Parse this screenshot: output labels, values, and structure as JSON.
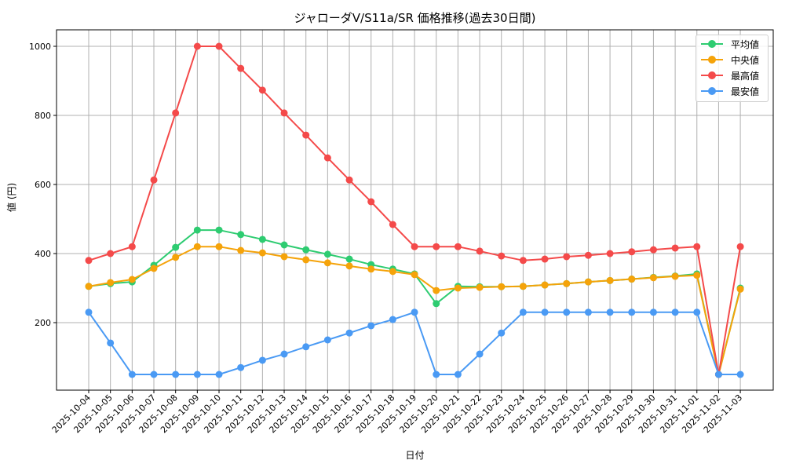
{
  "chart_data": {
    "type": "line",
    "title": "ジャローダV/S11a/SR 価格推移(過去30日間)",
    "xlabel": "日付",
    "ylabel": "値 (円)",
    "ylim": [
      0,
      1050
    ],
    "yticks": [
      200,
      400,
      600,
      800,
      1000
    ],
    "grid": true,
    "legend_position": "upper right",
    "categories": [
      "2025-10-04",
      "2025-10-05",
      "2025-10-06",
      "2025-10-07",
      "2025-10-08",
      "2025-10-09",
      "2025-10-10",
      "2025-10-11",
      "2025-10-12",
      "2025-10-13",
      "2025-10-14",
      "2025-10-15",
      "2025-10-16",
      "2025-10-17",
      "2025-10-18",
      "2025-10-19",
      "2025-10-20",
      "2025-10-21",
      "2025-10-22",
      "2025-10-23",
      "2025-10-24",
      "2025-10-25",
      "2025-10-26",
      "2025-10-27",
      "2025-10-28",
      "2025-10-29",
      "2025-10-30",
      "2025-10-31",
      "2025-11-01",
      "2025-11-02",
      "2025-11-03"
    ],
    "series": [
      {
        "name": "平均値",
        "color": "#2ecc71",
        "values": [
          305,
          313,
          318,
          366,
          418,
          468,
          468,
          455,
          441,
          425,
          411,
          398,
          384,
          368,
          355,
          341,
          255,
          305,
          304,
          304,
          305,
          309,
          313,
          318,
          322,
          326,
          331,
          335,
          341,
          50,
          300
        ]
      },
      {
        "name": "中央値",
        "color": "#f5a30a",
        "values": [
          305,
          316,
          325,
          357,
          389,
          420,
          420,
          409,
          402,
          391,
          382,
          373,
          364,
          355,
          348,
          339,
          293,
          300,
          302,
          304,
          305,
          309,
          313,
          318,
          322,
          326,
          330,
          334,
          337,
          50,
          297
        ]
      },
      {
        "name": "最高値",
        "color": "#f44a4a",
        "values": [
          380,
          400,
          420,
          613,
          807,
          1000,
          1000,
          936,
          873,
          807,
          743,
          677,
          613,
          550,
          484,
          420,
          420,
          420,
          407,
          393,
          380,
          384,
          391,
          395,
          400,
          405,
          411,
          416,
          420,
          50,
          420
        ]
      },
      {
        "name": "最安値",
        "color": "#4a9af4",
        "values": [
          230,
          141,
          50,
          50,
          50,
          50,
          50,
          70,
          91,
          109,
          130,
          150,
          170,
          191,
          209,
          230,
          50,
          50,
          109,
          170,
          230,
          230,
          230,
          230,
          230,
          230,
          230,
          230,
          230,
          50,
          50
        ]
      }
    ]
  }
}
